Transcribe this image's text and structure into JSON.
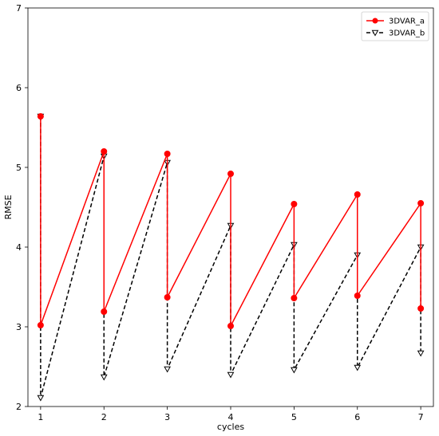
{
  "chart_data": {
    "type": "line",
    "xlabel": "cycles",
    "ylabel": "RMSE",
    "xlim": [
      0.8,
      7.2
    ],
    "ylim": [
      2,
      7
    ],
    "xticks": [
      1,
      2,
      3,
      4,
      5,
      6,
      7
    ],
    "yticks": [
      2,
      3,
      4,
      5,
      6,
      7
    ],
    "grid": false,
    "legend_position": "top-right",
    "series": [
      {
        "name": "3DVAR_a",
        "color": "#ff0000",
        "linestyle": "solid",
        "marker": "circle",
        "x": [
          1,
          1,
          2,
          2,
          3,
          3,
          4,
          4,
          5,
          5,
          6,
          6,
          7,
          7
        ],
        "y": [
          5.64,
          3.02,
          5.2,
          3.19,
          5.17,
          3.37,
          4.92,
          3.01,
          4.54,
          3.36,
          4.66,
          3.39,
          4.55,
          3.23
        ]
      },
      {
        "name": "3DVAR_b",
        "color": "#000000",
        "linestyle": "dashed",
        "marker": "triangle-down",
        "x": [
          1,
          1,
          2,
          2,
          3,
          3,
          4,
          4,
          5,
          5,
          6,
          6,
          7,
          7
        ],
        "y": [
          5.64,
          2.11,
          5.14,
          2.37,
          5.06,
          2.47,
          4.27,
          2.4,
          4.03,
          2.46,
          3.9,
          2.49,
          4.0,
          2.67
        ]
      }
    ]
  }
}
